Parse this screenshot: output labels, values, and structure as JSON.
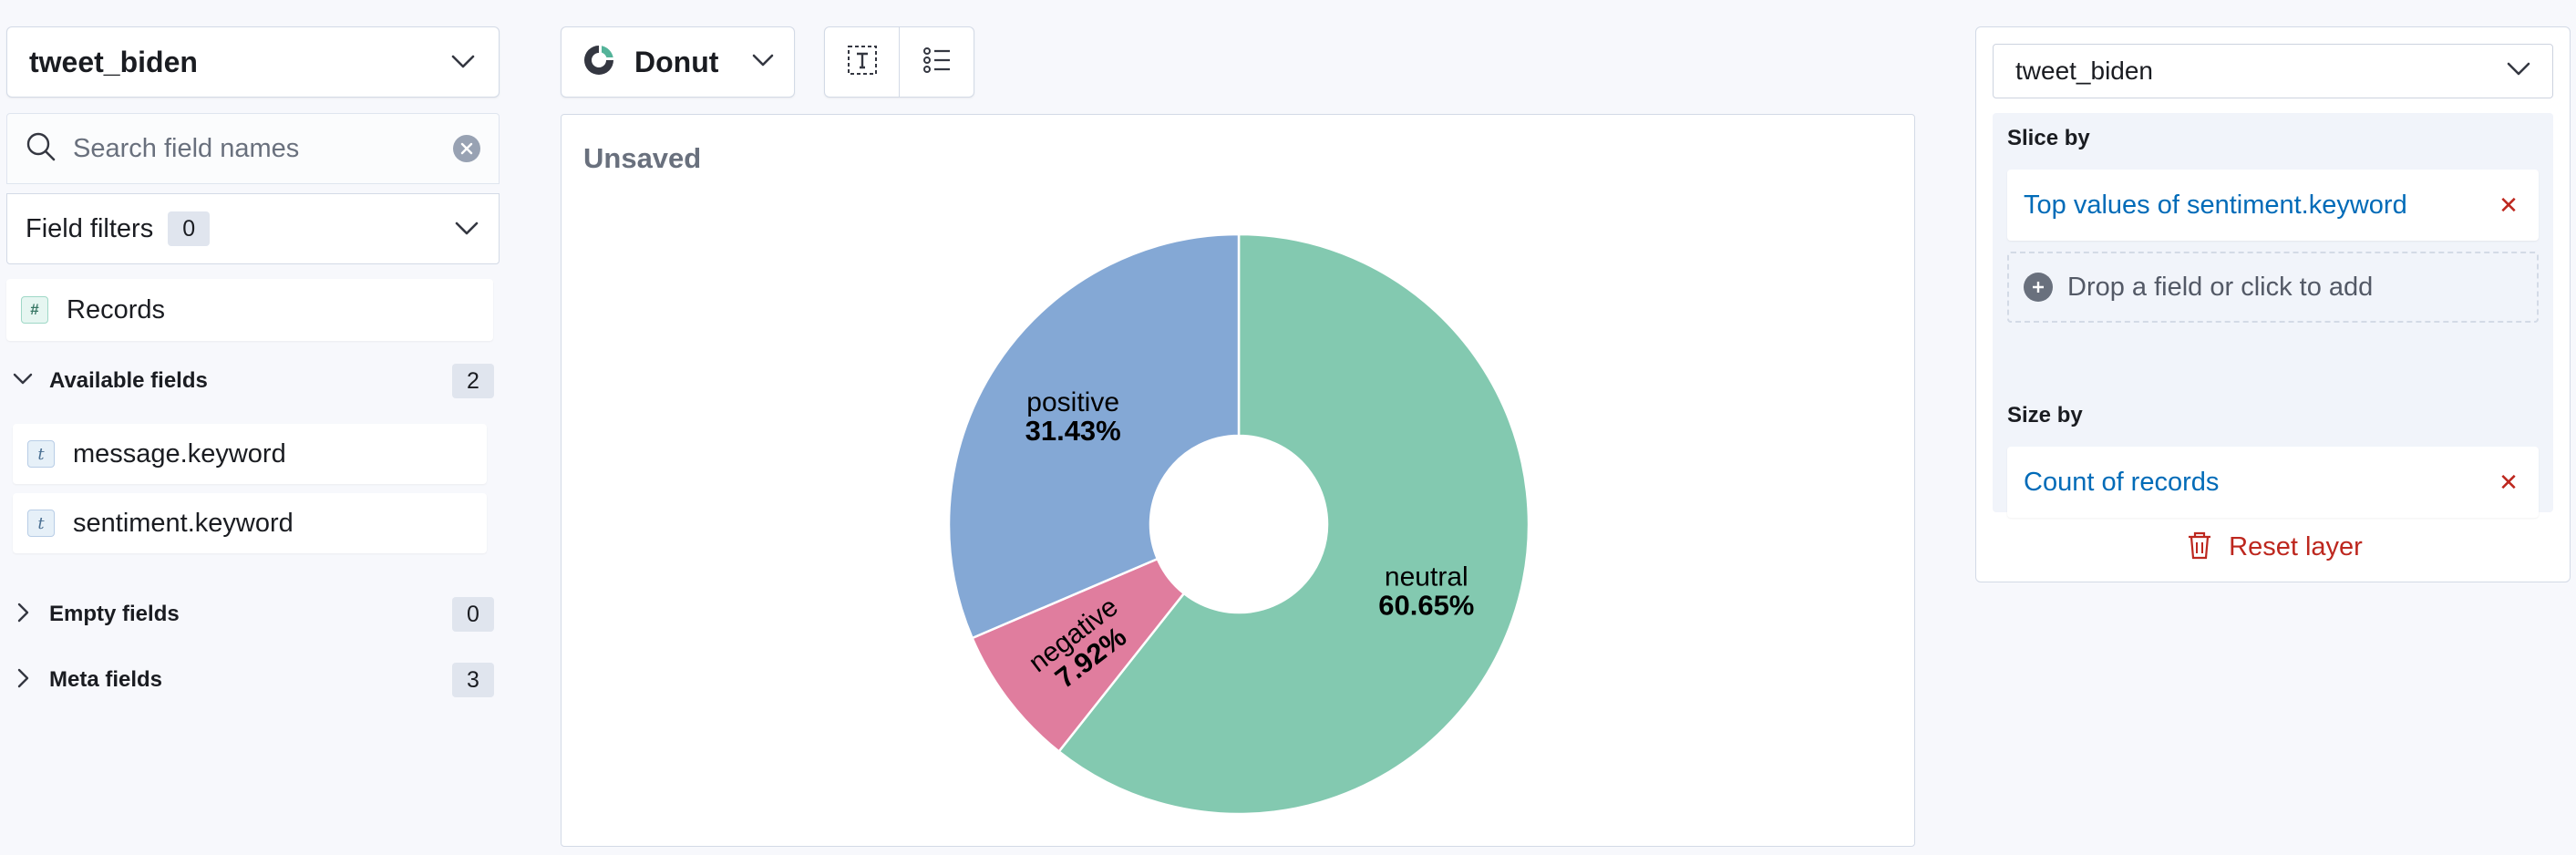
{
  "sidebar": {
    "data_view": "tweet_biden",
    "search_placeholder": "Search field names",
    "field_filters": {
      "label": "Field filters",
      "count": "0"
    },
    "records_label": "Records",
    "available": {
      "label": "Available fields",
      "count": "2",
      "fields": [
        {
          "name": "message.keyword",
          "type_icon": "t"
        },
        {
          "name": "sentiment.keyword",
          "type_icon": "t"
        }
      ]
    },
    "empty": {
      "label": "Empty fields",
      "count": "0"
    },
    "meta": {
      "label": "Meta fields",
      "count": "3"
    }
  },
  "toolbar": {
    "chart_type": "Donut",
    "chart_type_icon": "donut-chart-icon",
    "title_toggle_icon": "text-title-icon",
    "legend_icon": "legend-list-icon"
  },
  "workspace": {
    "title": "Unsaved"
  },
  "chart_data": {
    "type": "pie",
    "donut": true,
    "slices": [
      {
        "label": "neutral",
        "value": 60.65,
        "display": "60.65%",
        "color": "#83c9b0"
      },
      {
        "label": "negative",
        "value": 7.92,
        "display": "7.92%",
        "color": "#e07d9e"
      },
      {
        "label": "positive",
        "value": 31.43,
        "display": "31.43%",
        "color": "#84a8d5"
      }
    ]
  },
  "config": {
    "layer_data_view": "tweet_biden",
    "slice_by": {
      "label": "Slice by",
      "dimension": "Top values of sentiment.keyword",
      "drop_hint": "Drop a field or click to add"
    },
    "size_by": {
      "label": "Size by",
      "dimension": "Count of records"
    },
    "reset_label": "Reset layer"
  },
  "colors": {
    "link": "#006bb8",
    "danger": "#bd271e"
  }
}
